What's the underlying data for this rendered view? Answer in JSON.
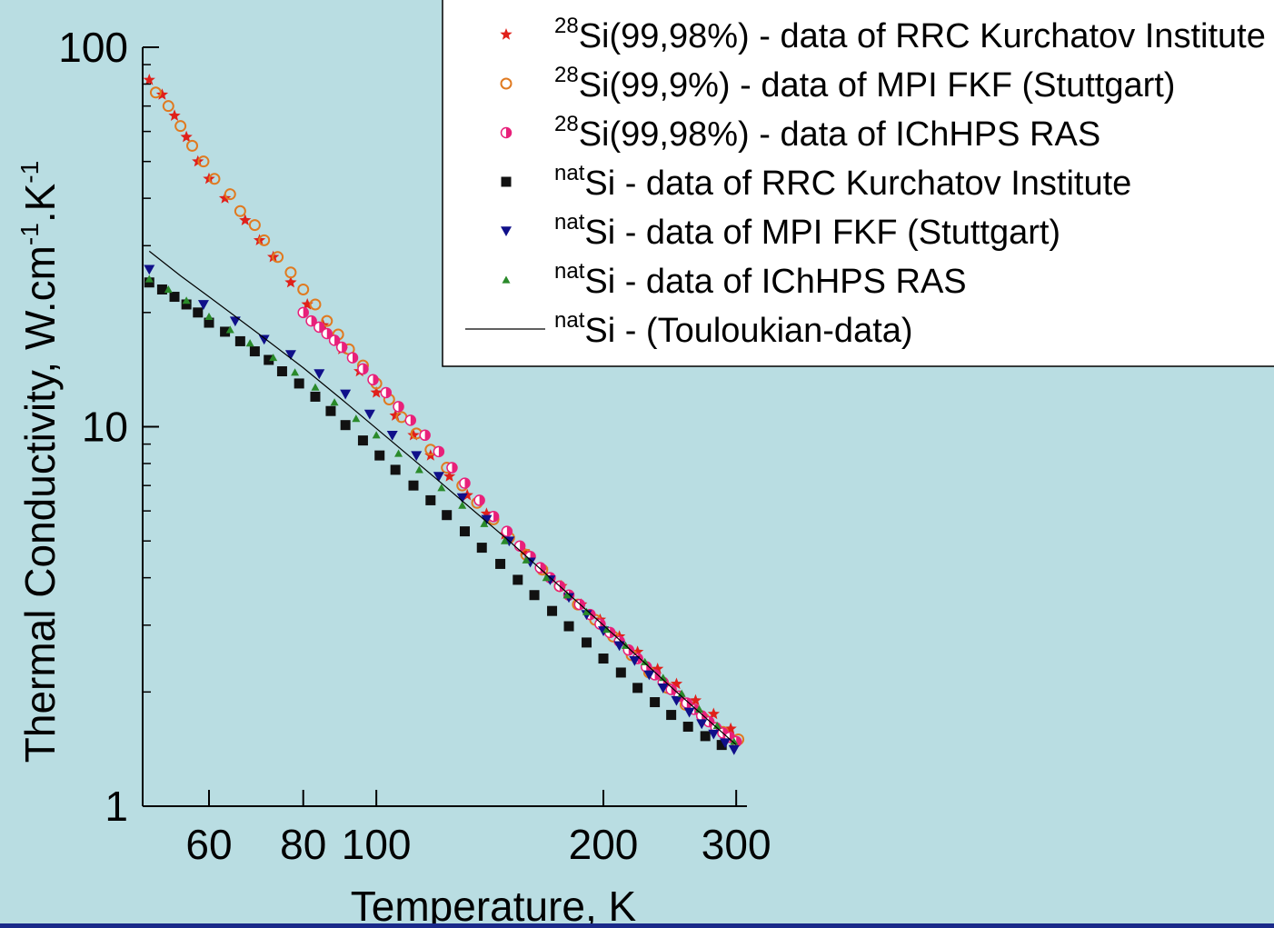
{
  "colors": {
    "background": "#b9dde2",
    "footer_bar": "#1a2a8a",
    "axis": "#000000",
    "legend_bg": "#ffffff"
  },
  "chart_data": {
    "type": "scatter",
    "x_scale": "log",
    "y_scale": "log",
    "xlabel": "Temperature, K",
    "ylabel": "Thermal Conductivity, W.cm-1.K-1",
    "ylabel_parts": {
      "main": "Thermal Conductivity, W.cm",
      "sup1": "-1",
      "mid": ".K",
      "sup2": "-1"
    },
    "xlim": [
      49,
      310
    ],
    "ylim": [
      1,
      100
    ],
    "x_ticks": [
      60,
      80,
      100,
      200,
      300
    ],
    "x_tick_labels": [
      "60",
      "80",
      "100",
      "200",
      "300"
    ],
    "y_ticks": [
      1,
      10,
      100
    ],
    "y_tick_labels": [
      "1",
      "10",
      "100"
    ],
    "legend_position": "top-right",
    "series": [
      {
        "legend": {
          "sup": "28",
          "text": "Si(99,98%) - data of RRC Kurchatov Institute"
        },
        "marker": "star",
        "color": "#e0201a",
        "x": [
          50,
          52,
          54,
          56,
          58,
          60,
          63,
          67,
          70,
          73,
          77,
          81,
          85,
          90,
          95,
          100,
          106,
          112,
          118,
          125,
          132,
          140,
          148,
          157,
          166,
          176,
          187,
          198,
          210,
          222,
          236,
          250,
          265,
          280,
          295
        ],
        "y": [
          82,
          75,
          66,
          58,
          50,
          45,
          40,
          35,
          31,
          28,
          24,
          21,
          18.5,
          16,
          14,
          12.3,
          10.7,
          9.5,
          8.4,
          7.4,
          6.6,
          5.9,
          5.2,
          4.7,
          4.2,
          3.8,
          3.4,
          3.1,
          2.8,
          2.55,
          2.3,
          2.1,
          1.9,
          1.75,
          1.6
        ]
      },
      {
        "legend": {
          "sup": "28",
          "text": "Si(99,9%)  - data of MPI FKF (Stuttgart)"
        },
        "marker": "circle-open",
        "color": "#e07a20",
        "x": [
          51,
          53,
          55,
          57,
          59,
          61,
          64,
          66,
          69,
          71,
          74,
          77,
          80,
          83,
          86,
          89,
          92,
          96,
          100,
          104,
          108,
          113,
          118,
          124,
          130,
          136,
          143,
          150,
          158,
          166,
          175,
          185,
          195,
          206,
          218,
          230,
          243,
          257,
          272,
          288,
          302
        ],
        "y": [
          76,
          70,
          62,
          55,
          50,
          45,
          41,
          37,
          34,
          31,
          28,
          25.5,
          23,
          21,
          19,
          17.5,
          16,
          14.5,
          13,
          11.8,
          10.6,
          9.6,
          8.7,
          7.8,
          7.0,
          6.3,
          5.7,
          5.1,
          4.6,
          4.2,
          3.8,
          3.4,
          3.1,
          2.8,
          2.5,
          2.25,
          2.05,
          1.85,
          1.7,
          1.57,
          1.5
        ]
      },
      {
        "legend": {
          "sup": "28",
          "text": "Si(99,98%) - data of IChHPS RAS"
        },
        "marker": "circle-half",
        "color": "#e8207a",
        "x": [
          80,
          82,
          84,
          86,
          88,
          90,
          93,
          96,
          99,
          103,
          107,
          111,
          116,
          121,
          126,
          131,
          137,
          143,
          149,
          155,
          160,
          165,
          170,
          175,
          180,
          186,
          192,
          198,
          204,
          210,
          216,
          222,
          228,
          234,
          240,
          246,
          252,
          258,
          264,
          270,
          276,
          282,
          288,
          294,
          300
        ],
        "y": [
          20,
          19,
          18.3,
          17.6,
          16.9,
          16.2,
          15.2,
          14.2,
          13.3,
          12.3,
          11.3,
          10.4,
          9.5,
          8.6,
          7.8,
          7.1,
          6.4,
          5.8,
          5.3,
          4.85,
          4.55,
          4.25,
          4.0,
          3.8,
          3.6,
          3.4,
          3.2,
          3.02,
          2.87,
          2.72,
          2.58,
          2.45,
          2.33,
          2.22,
          2.12,
          2.03,
          1.95,
          1.87,
          1.8,
          1.73,
          1.67,
          1.61,
          1.56,
          1.52,
          1.48
        ]
      },
      {
        "legend": {
          "sup": "nat",
          "text": "Si - data of RRC Kurchatov Institute"
        },
        "marker": "square",
        "color": "#111111",
        "x": [
          50,
          52,
          54,
          56,
          58,
          60,
          63,
          66,
          69,
          72,
          75,
          79,
          83,
          87,
          91,
          96,
          101,
          106,
          112,
          118,
          124,
          131,
          138,
          146,
          154,
          162,
          171,
          180,
          190,
          200,
          211,
          222,
          234,
          246,
          259,
          273,
          287
        ],
        "y": [
          24,
          23,
          22,
          21,
          20,
          18.8,
          17.8,
          16.8,
          15.8,
          15,
          14,
          13,
          12,
          11,
          10.1,
          9.2,
          8.4,
          7.7,
          7.0,
          6.4,
          5.85,
          5.3,
          4.8,
          4.35,
          3.95,
          3.6,
          3.27,
          2.98,
          2.7,
          2.45,
          2.25,
          2.05,
          1.88,
          1.74,
          1.62,
          1.53,
          1.45
        ]
      },
      {
        "legend": {
          "sup": "nat",
          "text": "Si - data of MPI FKF (Stuttgart)"
        },
        "marker": "triangle-down",
        "color": "#10108a",
        "x": [
          50,
          59,
          65,
          71,
          77,
          84,
          91,
          98,
          105,
          113,
          121,
          130,
          140,
          150,
          160,
          170,
          180,
          190,
          200,
          210,
          220,
          230,
          240,
          250,
          260,
          270,
          280,
          290,
          298
        ],
        "y": [
          26,
          21,
          19,
          17,
          15.5,
          13.8,
          12.2,
          10.8,
          9.5,
          8.4,
          7.4,
          6.5,
          5.7,
          5.0,
          4.4,
          3.95,
          3.55,
          3.2,
          2.9,
          2.65,
          2.42,
          2.22,
          2.05,
          1.9,
          1.77,
          1.65,
          1.55,
          1.47,
          1.41
        ]
      },
      {
        "legend": {
          "sup": "nat",
          "text": "Si - data of IChHPS RAS"
        },
        "marker": "triangle-up",
        "color": "#2a8a2a",
        "x": [
          50,
          53,
          56,
          60,
          64,
          68,
          73,
          78,
          83,
          88,
          94,
          100,
          107,
          114,
          122,
          130,
          139,
          148,
          158,
          168,
          179,
          190,
          202,
          214,
          227,
          240,
          254,
          268,
          283,
          298
        ],
        "y": [
          24.5,
          23,
          21.5,
          19.5,
          18,
          16.6,
          15.2,
          13.9,
          12.7,
          11.6,
          10.5,
          9.5,
          8.5,
          7.7,
          6.9,
          6.2,
          5.55,
          5.0,
          4.45,
          4.0,
          3.6,
          3.25,
          2.92,
          2.65,
          2.4,
          2.18,
          1.98,
          1.8,
          1.63,
          1.48
        ]
      },
      {
        "legend": {
          "sup": "nat",
          "text": "Si - (Touloukian-data)"
        },
        "marker": "line",
        "color": "#000000",
        "x": [
          50,
          55,
          60,
          70,
          80,
          90,
          100,
          120,
          150,
          200,
          250,
          300
        ],
        "y": [
          29,
          25,
          22,
          17.5,
          14.3,
          11.8,
          9.9,
          7.3,
          5.0,
          3.0,
          2.0,
          1.45
        ]
      }
    ]
  }
}
